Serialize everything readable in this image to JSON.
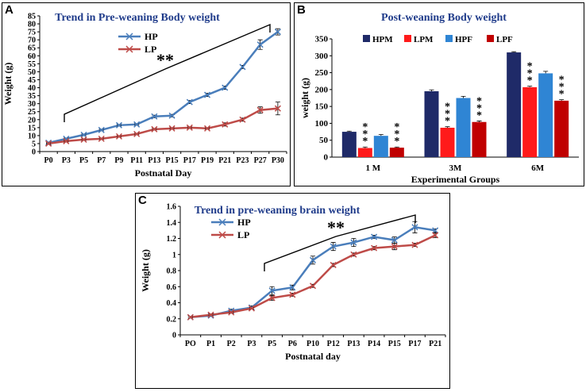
{
  "colors": {
    "hp": "#4a7ebb",
    "lp": "#be4b48",
    "hpm": "#1f2a68",
    "lpm": "#ff1a1a",
    "hpf": "#2f85d4",
    "lpf": "#c00000",
    "title": "#1f3b8a"
  },
  "chart_data": [
    {
      "panel": "A",
      "type": "line",
      "title": "Trend in Pre-weaning Body weight",
      "xlabel": "Postnatal Day",
      "ylabel": "Weight (g)",
      "ylim": [
        0,
        85
      ],
      "yticks": [
        "0",
        "5",
        "10",
        "15",
        "20",
        "25",
        "30",
        "35",
        "40",
        "45",
        "50",
        "55",
        "60",
        "65",
        "70",
        "75",
        "80",
        "85"
      ],
      "categories": [
        "P0",
        "P3",
        "P5",
        "P7",
        "P9",
        "P11",
        "P13",
        "P15",
        "P17",
        "P19",
        "P21",
        "P23",
        "P27",
        "P30"
      ],
      "series": [
        {
          "name": "HP",
          "values": [
            5.5,
            8,
            10.5,
            13.5,
            16.5,
            17,
            22,
            22.5,
            31,
            35.5,
            40,
            53,
            67,
            75
          ]
        },
        {
          "name": "LP",
          "values": [
            5,
            6.5,
            7.5,
            8,
            9.5,
            11,
            14,
            14.5,
            15,
            14.5,
            17,
            20,
            26,
            27
          ]
        }
      ],
      "errors": [
        [
          0.5,
          0.5,
          0.5,
          0.5,
          0.5,
          0.5,
          0.8,
          0.8,
          1,
          1,
          1,
          1,
          3,
          2
        ],
        [
          0.5,
          0.5,
          0.5,
          0.5,
          0.5,
          0.5,
          0.5,
          0.5,
          0.5,
          0.5,
          1,
          1,
          2,
          4
        ]
      ],
      "annotation": "**"
    },
    {
      "panel": "B",
      "type": "bar",
      "title": "Post-weaning Body weight",
      "xlabel": "Experimental Groups",
      "ylabel": "weight (g)",
      "ylim": [
        0,
        350
      ],
      "yticks": [
        "0",
        "50",
        "100",
        "150",
        "200",
        "250",
        "300",
        "350"
      ],
      "categories": [
        "1 M",
        "3M",
        "6M"
      ],
      "series": [
        {
          "name": "HPM",
          "values": [
            75,
            195,
            310
          ]
        },
        {
          "name": "LPM",
          "values": [
            27,
            87,
            207
          ]
        },
        {
          "name": "HPF",
          "values": [
            63,
            175,
            248
          ]
        },
        {
          "name": "LPF",
          "values": [
            28,
            104,
            167
          ]
        }
      ],
      "errors": [
        [
          2,
          4,
          2
        ],
        [
          3,
          3,
          3
        ],
        [
          4,
          5,
          6
        ],
        [
          2,
          3,
          3
        ]
      ],
      "annotation": "***"
    },
    {
      "panel": "C",
      "type": "line",
      "title": "Trend in pre-weaning brain weight",
      "xlabel": "Postnatal day",
      "ylabel": "Weight (g)",
      "ylim": [
        0,
        1.6
      ],
      "yticks": [
        "0",
        "0.2",
        "0.4",
        "0.6",
        "0.8",
        "1",
        "1.2",
        "1.4",
        "1.6"
      ],
      "categories": [
        "PO",
        "P1",
        "P2",
        "P3",
        "P5",
        "P6",
        "P10",
        "P12",
        "P13",
        "P14",
        "P15",
        "P17",
        "P21"
      ],
      "series": [
        {
          "name": "HP",
          "values": [
            0.22,
            0.24,
            0.3,
            0.34,
            0.55,
            0.59,
            0.93,
            1.1,
            1.15,
            1.22,
            1.18,
            1.34,
            1.3
          ]
        },
        {
          "name": "LP",
          "values": [
            0.22,
            0.25,
            0.28,
            0.33,
            0.46,
            0.5,
            0.61,
            0.87,
            1.0,
            1.08,
            1.1,
            1.12,
            1.24
          ]
        }
      ],
      "errors": [
        [
          0.01,
          0.01,
          0.02,
          0.02,
          0.05,
          0.03,
          0.05,
          0.05,
          0.05,
          0.02,
          0.04,
          0.07,
          0.02
        ],
        [
          0.01,
          0.01,
          0.01,
          0.01,
          0.03,
          0.02,
          0.02,
          0.02,
          0.02,
          0.02,
          0.04,
          0.02,
          0.03
        ]
      ],
      "annotation": "**"
    }
  ],
  "panel_labels": [
    "A",
    "B",
    "C"
  ]
}
